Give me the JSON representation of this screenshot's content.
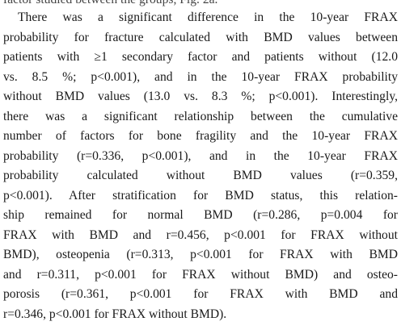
{
  "document": {
    "cutoff_line": "factor studied between the groups, Fig. 2a.",
    "lines": [
      "There was a significant difference in the 10-year FRAX",
      "probability for fracture calculated with BMD values between",
      "patients with ≥1 secondary factor and patients without (12.0",
      "vs. 8.5 %; p<0.001), and in the 10-year FRAX probability",
      "without BMD values (13.0 vs. 8.3 %; p<0.001). Interestingly,",
      "there was a significant relationship between the cumulative",
      "number of factors for bone fragility and the 10-year FRAX",
      "probability (r=0.336, p<0.001), and in the 10-year FRAX",
      "probability calculated without BMD values (r=0.359,",
      "p<0.001). After stratification for BMD status, this relation-",
      "ship remained for normal BMD (r=0.286, p=0.004 for",
      "FRAX with BMD and r=0.456, p<0.001 for FRAX without",
      "BMD), osteopenia (r=0.313, p<0.001 for FRAX with BMD",
      "and r=0.311, p<0.001 for FRAX without BMD) and osteo-",
      "porosis (r=0.361, p<0.001 for FRAX with BMD and",
      "r=0.346, p<0.001 for FRAX without BMD)."
    ]
  }
}
